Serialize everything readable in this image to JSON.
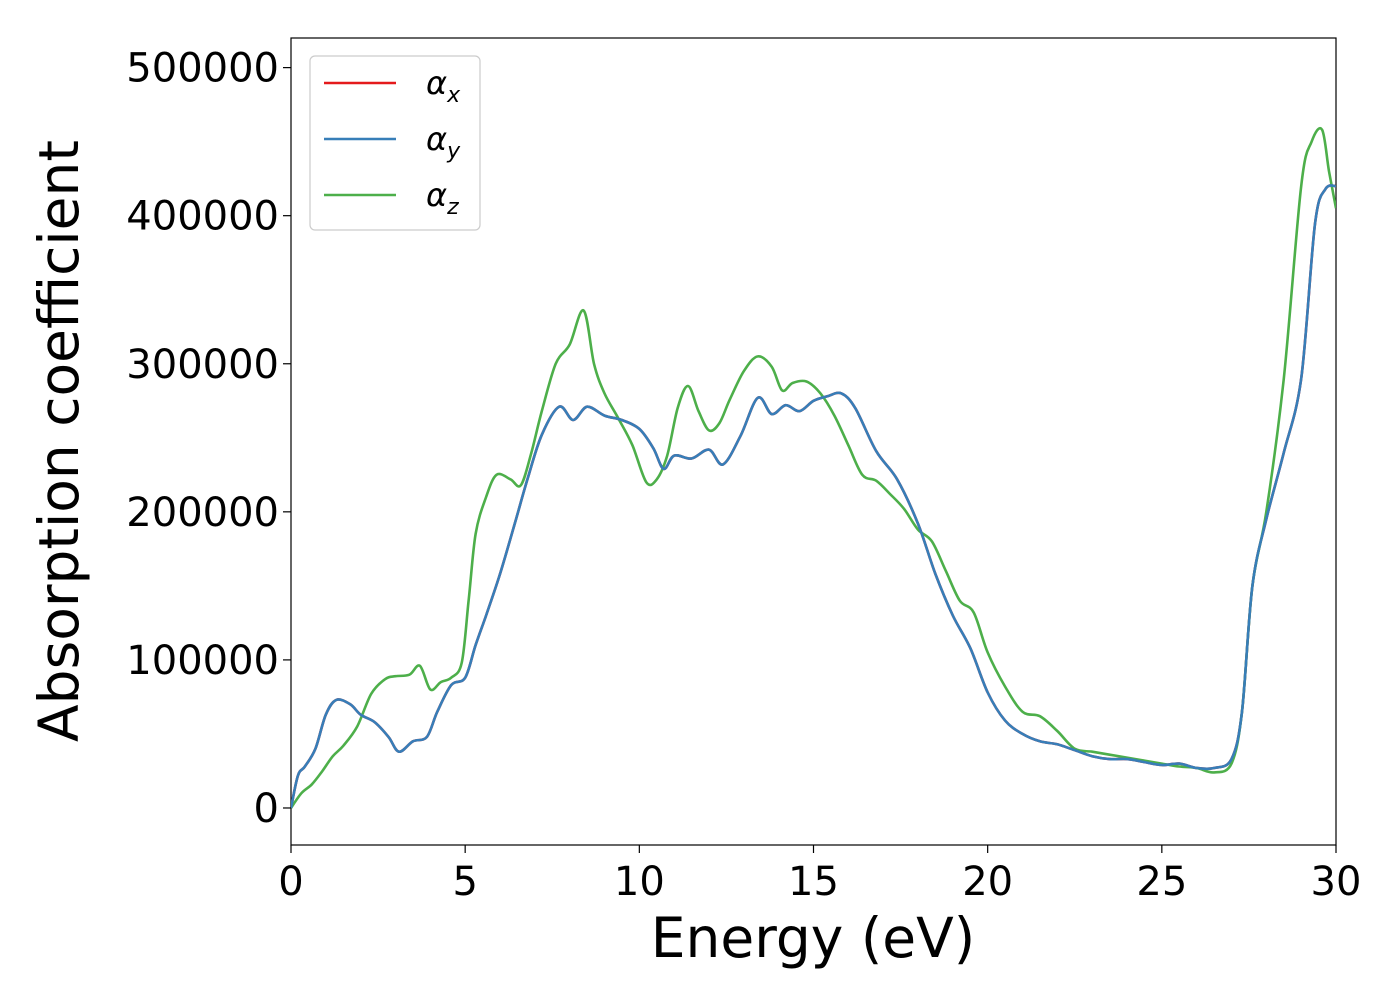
{
  "chart_data": {
    "type": "line",
    "title": "",
    "xlabel": "Energy (eV)",
    "ylabel": "Absorption coefficient",
    "xlim": [
      0,
      30
    ],
    "ylim": [
      -25000,
      520000
    ],
    "xticks": [
      0,
      5,
      10,
      15,
      20,
      25,
      30
    ],
    "xtick_labels": [
      "0",
      "5",
      "10",
      "15",
      "20",
      "25",
      "30"
    ],
    "yticks": [
      0,
      100000,
      200000,
      300000,
      400000,
      500000
    ],
    "ytick_labels": [
      "0",
      "100000",
      "200000",
      "300000",
      "400000",
      "500000"
    ],
    "grid": false,
    "legend_position": "upper-left",
    "series": [
      {
        "name": "α",
        "subscript": "x",
        "color": "#e41a1c",
        "x": [
          0,
          0.2,
          0.4,
          0.7,
          1.0,
          1.3,
          1.7,
          2.0,
          2.4,
          2.8,
          3.1,
          3.5,
          3.9,
          4.2,
          4.6,
          5.0,
          5.3,
          5.6,
          6.0,
          6.4,
          6.8,
          7.2,
          7.7,
          8.1,
          8.5,
          9.0,
          9.5,
          10.0,
          10.4,
          10.7,
          11.0,
          11.5,
          12.0,
          12.4,
          12.9,
          13.4,
          13.8,
          14.2,
          14.6,
          15.0,
          15.4,
          15.8,
          16.2,
          16.8,
          17.4,
          18.0,
          18.5,
          19.0,
          19.5,
          20.0,
          20.5,
          21.0,
          21.5,
          22.0,
          22.5,
          23.0,
          23.5,
          24.0,
          24.5,
          25.0,
          25.5,
          26.0,
          26.5,
          27.0,
          27.3,
          27.6,
          28.0,
          28.5,
          29.0,
          29.4,
          29.7,
          30.0
        ],
        "values": [
          0,
          22000,
          28000,
          40000,
          63000,
          73000,
          70000,
          63000,
          58000,
          48000,
          38000,
          45000,
          48000,
          65000,
          83000,
          88000,
          110000,
          130000,
          158000,
          190000,
          223000,
          252000,
          271000,
          262000,
          271000,
          265000,
          262000,
          256000,
          243000,
          229000,
          238000,
          236000,
          242000,
          232000,
          251000,
          277000,
          266000,
          272000,
          268000,
          275000,
          278000,
          280000,
          270000,
          241000,
          222000,
          192000,
          158000,
          130000,
          108000,
          78000,
          59000,
          50000,
          45000,
          43000,
          39000,
          35000,
          33000,
          33000,
          31000,
          29000,
          30000,
          27000,
          27000,
          33000,
          65000,
          150000,
          195000,
          240000,
          290000,
          395000,
          418000,
          420000
        ]
      },
      {
        "name": "α",
        "subscript": "y",
        "color": "#377eb8",
        "x": [
          0,
          0.2,
          0.4,
          0.7,
          1.0,
          1.3,
          1.7,
          2.0,
          2.4,
          2.8,
          3.1,
          3.5,
          3.9,
          4.2,
          4.6,
          5.0,
          5.3,
          5.6,
          6.0,
          6.4,
          6.8,
          7.2,
          7.7,
          8.1,
          8.5,
          9.0,
          9.5,
          10.0,
          10.4,
          10.7,
          11.0,
          11.5,
          12.0,
          12.4,
          12.9,
          13.4,
          13.8,
          14.2,
          14.6,
          15.0,
          15.4,
          15.8,
          16.2,
          16.8,
          17.4,
          18.0,
          18.5,
          19.0,
          19.5,
          20.0,
          20.5,
          21.0,
          21.5,
          22.0,
          22.5,
          23.0,
          23.5,
          24.0,
          24.5,
          25.0,
          25.5,
          26.0,
          26.5,
          27.0,
          27.3,
          27.6,
          28.0,
          28.5,
          29.0,
          29.4,
          29.7,
          30.0
        ],
        "values": [
          0,
          22000,
          28000,
          40000,
          63000,
          73000,
          70000,
          63000,
          58000,
          48000,
          38000,
          45000,
          48000,
          65000,
          83000,
          88000,
          110000,
          130000,
          158000,
          190000,
          223000,
          252000,
          271000,
          262000,
          271000,
          265000,
          262000,
          256000,
          243000,
          229000,
          238000,
          236000,
          242000,
          232000,
          251000,
          277000,
          266000,
          272000,
          268000,
          275000,
          278000,
          280000,
          270000,
          241000,
          222000,
          192000,
          158000,
          130000,
          108000,
          78000,
          59000,
          50000,
          45000,
          43000,
          39000,
          35000,
          33000,
          33000,
          31000,
          29000,
          30000,
          27000,
          27000,
          33000,
          65000,
          150000,
          195000,
          240000,
          290000,
          395000,
          418000,
          420000
        ]
      },
      {
        "name": "α",
        "subscript": "z",
        "color": "#4daf4a",
        "x": [
          0,
          0.3,
          0.6,
          0.9,
          1.2,
          1.5,
          1.9,
          2.3,
          2.7,
          3.0,
          3.4,
          3.7,
          4.0,
          4.3,
          4.6,
          4.9,
          5.1,
          5.3,
          5.6,
          5.9,
          6.3,
          6.6,
          6.9,
          7.2,
          7.6,
          8.0,
          8.4,
          8.7,
          9.0,
          9.4,
          9.8,
          10.2,
          10.5,
          10.8,
          11.1,
          11.4,
          11.7,
          12.0,
          12.3,
          12.6,
          13.0,
          13.4,
          13.8,
          14.1,
          14.4,
          14.8,
          15.2,
          15.6,
          16.0,
          16.4,
          16.8,
          17.2,
          17.6,
          18.0,
          18.4,
          18.8,
          19.2,
          19.6,
          20.0,
          20.5,
          21.0,
          21.5,
          22.0,
          22.5,
          23.0,
          23.5,
          24.0,
          24.5,
          25.0,
          25.5,
          26.0,
          26.5,
          27.0,
          27.3,
          27.6,
          28.0,
          28.5,
          29.0,
          29.3,
          29.6,
          29.8,
          30.0
        ],
        "values": [
          0,
          10000,
          16000,
          25000,
          35000,
          42000,
          55000,
          77000,
          87000,
          89000,
          90000,
          96000,
          80000,
          85000,
          88000,
          98000,
          140000,
          185000,
          210000,
          225000,
          222000,
          218000,
          240000,
          268000,
          300000,
          313000,
          336000,
          300000,
          280000,
          263000,
          245000,
          220000,
          222000,
          238000,
          270000,
          285000,
          268000,
          255000,
          260000,
          276000,
          295000,
          305000,
          298000,
          282000,
          287000,
          288000,
          280000,
          265000,
          245000,
          225000,
          221000,
          212000,
          202000,
          188000,
          180000,
          160000,
          140000,
          132000,
          105000,
          82000,
          65000,
          62000,
          52000,
          40000,
          38000,
          36000,
          34000,
          32000,
          30000,
          28000,
          27000,
          24000,
          30000,
          65000,
          150000,
          200000,
          290000,
          420000,
          450000,
          458000,
          430000,
          405000
        ]
      }
    ]
  }
}
